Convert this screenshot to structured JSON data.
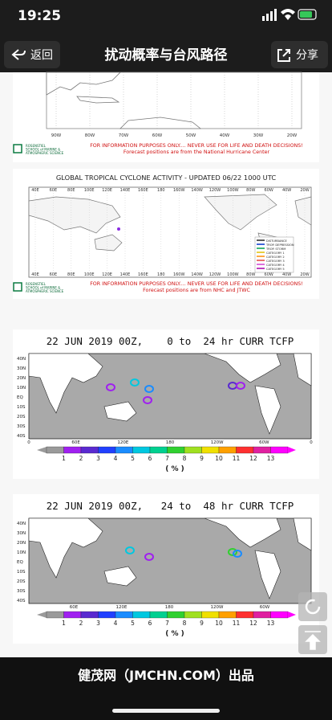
{
  "status_bar": {
    "time": "19:25"
  },
  "nav": {
    "back": "返回",
    "title": "扰动概率与台风路径",
    "share": "分享"
  },
  "atlantic_map": {
    "lon_labels": [
      "90W",
      "80W",
      "70W",
      "60W",
      "50W",
      "40W",
      "30W",
      "20W"
    ],
    "institution": [
      "ROSENSTIEL",
      "SCHOOL of MARINE &",
      "ATMOSPHERIC SCIENCE"
    ],
    "disclaimer": "FOR INFORMATION PURPOSES ONLY.... NEVER USE FOR LIFE AND DEATH DECISIONS!",
    "source": "Forecast positions are from the National Hurricane Center"
  },
  "global_map": {
    "title": "GLOBAL TROPICAL CYCLONE ACTIVITY - UPDATED 06/22 1000 UTC",
    "lon_labels": [
      "40E",
      "60E",
      "80E",
      "100E",
      "120E",
      "140E",
      "160E",
      "180",
      "160W",
      "140W",
      "120W",
      "100W",
      "80W",
      "60W",
      "40W",
      "20W"
    ],
    "legend": [
      "DISTURBANCE",
      "TROP. DEPRESSION",
      "TROP. STORM",
      "CATEGORY 1",
      "CATEGORY 2",
      "CATEGORY 3",
      "CATEGORY 4",
      "CATEGORY 5"
    ],
    "institution": [
      "ROSENSTIEL",
      "SCHOOL of MARINE &",
      "ATMOSPHERIC SCIENCE"
    ],
    "disclaimer": "FOR INFORMATION PURPOSES ONLY.... NEVER USE FOR LIFE AND DEATH DECISIONS!",
    "source": "Forecast positions are from NHC and JTWC"
  },
  "tcfp_maps": [
    {
      "title": "22 JUN 2019 00Z,    0 to  24 hr CURR TCFP",
      "lat_labels": [
        "40N",
        "30N",
        "20N",
        "10N",
        "EQ",
        "10S",
        "20S",
        "30S",
        "40S"
      ],
      "lon_labels": [
        "0",
        "60E",
        "120E",
        "180",
        "120W",
        "60W",
        "0"
      ],
      "colorbar_labels": [
        "1",
        "2",
        "3",
        "4",
        "5",
        "6",
        "7",
        "8",
        "9",
        "10",
        "11",
        "12",
        "13"
      ],
      "unit": "( % )"
    },
    {
      "title": "22 JUN 2019 00Z,   24 to  48 hr CURR TCFP",
      "lat_labels": [
        "40N",
        "30N",
        "20N",
        "10N",
        "EQ",
        "10S",
        "20S",
        "30S",
        "40S"
      ],
      "lon_labels": [
        "60E",
        "120E",
        "180",
        "120W",
        "60W"
      ],
      "colorbar_labels": [
        "1",
        "2",
        "3",
        "4",
        "5",
        "6",
        "7",
        "8",
        "9",
        "10",
        "11",
        "12",
        "13"
      ],
      "unit": "( % )"
    }
  ],
  "footer": "健茂网（JMCHN.COM）出品"
}
